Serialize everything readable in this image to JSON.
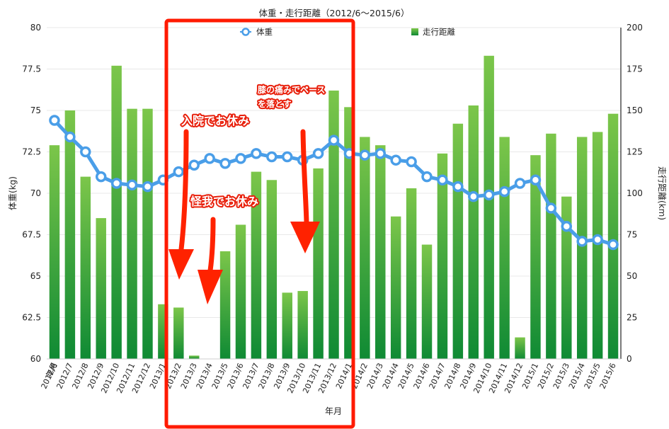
{
  "chart_data": {
    "type": "bar+line",
    "title": "体重・走行距離（2012/6〜2015/6）",
    "xlabel": "年月",
    "ylabel_left": "体重(kg)",
    "ylabel_right": "走行距離(km)",
    "x_axis_corner_label": "年月",
    "ylim_left": [
      60,
      80
    ],
    "ylim_right": [
      0,
      200
    ],
    "yticks_left": [
      "60",
      "62.5",
      "65",
      "67.5",
      "70",
      "72.5",
      "75",
      "77.5",
      "80"
    ],
    "yticks_right": [
      "0",
      "25",
      "50",
      "75",
      "100",
      "125",
      "150",
      "175",
      "200"
    ],
    "grid": true,
    "legend_position": "top",
    "categories": [
      "2012/6",
      "2012/7",
      "2012/8",
      "2012/9",
      "2012/10",
      "2012/11",
      "2012/12",
      "2013/1",
      "2013/2",
      "2013/3",
      "2013/4",
      "2013/5",
      "2013/6",
      "2013/7",
      "2013/8",
      "2013/9",
      "2013/10",
      "2013/11",
      "2013/12",
      "2014/1",
      "2014/2",
      "2014/3",
      "2014/4",
      "2014/5",
      "2014/6",
      "2014/7",
      "2014/8",
      "2014/9",
      "2014/10",
      "2014/11",
      "2014/12",
      "2015/1",
      "2015/2",
      "2015/3",
      "2015/4",
      "2015/5",
      "2015/6"
    ],
    "series": [
      {
        "name": "走行距離",
        "type": "bar",
        "axis": "right",
        "values": [
          129,
          150,
          110,
          85,
          177,
          151,
          151,
          33,
          31,
          2,
          0,
          65,
          81,
          113,
          108,
          40,
          41,
          115,
          162,
          152,
          134,
          129,
          86,
          103,
          69,
          124,
          142,
          153,
          183,
          134,
          13,
          123,
          136,
          98,
          134,
          137,
          148
        ]
      },
      {
        "name": "体重",
        "type": "line",
        "axis": "left",
        "values": [
          74.4,
          73.4,
          72.5,
          71.0,
          70.6,
          70.5,
          70.4,
          70.8,
          71.3,
          71.7,
          72.1,
          71.8,
          72.1,
          72.4,
          72.2,
          72.2,
          72.0,
          72.4,
          73.2,
          72.4,
          72.3,
          72.4,
          72.0,
          71.9,
          71.0,
          70.8,
          70.4,
          69.8,
          69.9,
          70.1,
          70.6,
          70.8,
          69.1,
          68.0,
          67.1,
          67.2,
          66.9
        ]
      }
    ],
    "annotations": [
      {
        "text": "入院でお休み"
      },
      {
        "text": "怪我でお休み"
      },
      {
        "text": "膝の痛みでペース"
      },
      {
        "text": "を落とす"
      }
    ],
    "colors": {
      "bar_top": "#7cc64a",
      "bar_bottom": "#0f8a34",
      "line": "#4a9ee8",
      "marker_fill": "#ffffff",
      "highlight": "#ff1a00",
      "arrow": "#ff2200",
      "grid": "#e8e8e8"
    }
  }
}
